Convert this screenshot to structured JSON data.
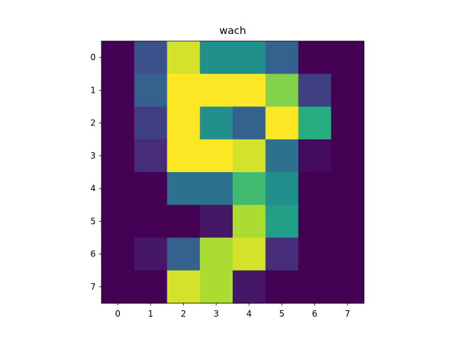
{
  "chart_data": {
    "type": "heatmap",
    "title": "wach",
    "xlabel": "",
    "ylabel": "",
    "x_ticks": [
      "0",
      "1",
      "2",
      "3",
      "4",
      "5",
      "6",
      "7"
    ],
    "y_ticks": [
      "0",
      "1",
      "2",
      "3",
      "4",
      "5",
      "6",
      "7"
    ],
    "colormap": "viridis",
    "value_range": [
      0,
      16
    ],
    "grid": false,
    "legend": "none",
    "values": [
      [
        0,
        4,
        15,
        8,
        8,
        5,
        0,
        0
      ],
      [
        0,
        5,
        16,
        16,
        16,
        13,
        3,
        0
      ],
      [
        0,
        3,
        16,
        8,
        5,
        16,
        10,
        0
      ],
      [
        0,
        2,
        16,
        16,
        15,
        6,
        0.5,
        0
      ],
      [
        0,
        0,
        6,
        6,
        11,
        8,
        0,
        0
      ],
      [
        0,
        0,
        0,
        1,
        14,
        9,
        0,
        0
      ],
      [
        0,
        1,
        5,
        14,
        15,
        2,
        0,
        0
      ],
      [
        0,
        0,
        15,
        14,
        1,
        0,
        0,
        0
      ]
    ]
  }
}
